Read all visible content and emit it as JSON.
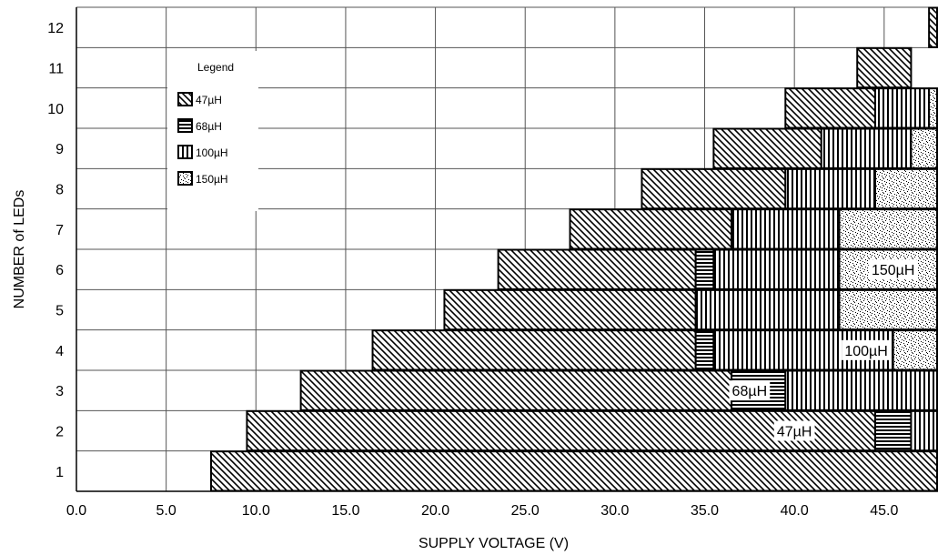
{
  "chart_data": {
    "type": "bar",
    "orientation": "horizontal-stacked-ranges",
    "title": "",
    "xlabel": "SUPPLY VOLTAGE (V)",
    "ylabel": "NUMBER of LEDs",
    "xlim": [
      0,
      48
    ],
    "xticks": [
      "0.0",
      "5.0",
      "10.0",
      "15.0",
      "20.0",
      "25.0",
      "30.0",
      "35.0",
      "40.0",
      "45.0"
    ],
    "categories": [
      "1",
      "2",
      "3",
      "4",
      "5",
      "6",
      "7",
      "8",
      "9",
      "10",
      "11",
      "12"
    ],
    "grid": true,
    "legend": {
      "title": "Legend",
      "placement": "top-left",
      "items": [
        {
          "key": "i47",
          "label": "47µH"
        },
        {
          "key": "i68",
          "label": "68µH"
        },
        {
          "key": "i100",
          "label": "100µH"
        },
        {
          "key": "i150",
          "label": "150µH"
        }
      ]
    },
    "rows": [
      {
        "leds": 1,
        "segments": [
          {
            "key": "i47",
            "from": 7.5,
            "to": 48
          }
        ]
      },
      {
        "leds": 2,
        "segments": [
          {
            "key": "i47",
            "from": 9.5,
            "to": 44.5
          },
          {
            "key": "i68",
            "from": 44.5,
            "to": 46.5
          },
          {
            "key": "i100",
            "from": 46.5,
            "to": 48
          }
        ]
      },
      {
        "leds": 3,
        "segments": [
          {
            "key": "i47",
            "from": 12.5,
            "to": 36.5
          },
          {
            "key": "i68",
            "from": 36.5,
            "to": 39.5
          },
          {
            "key": "i100",
            "from": 39.5,
            "to": 48
          }
        ]
      },
      {
        "leds": 4,
        "segments": [
          {
            "key": "i47",
            "from": 16.5,
            "to": 34.5
          },
          {
            "key": "i68",
            "from": 34.5,
            "to": 35.5
          },
          {
            "key": "i100",
            "from": 35.5,
            "to": 45.5
          },
          {
            "key": "i150",
            "from": 45.5,
            "to": 48
          }
        ]
      },
      {
        "leds": 5,
        "segments": [
          {
            "key": "i47",
            "from": 20.5,
            "to": 34.5
          },
          {
            "key": "i100",
            "from": 34.5,
            "to": 42.5
          },
          {
            "key": "i150",
            "from": 42.5,
            "to": 48
          }
        ]
      },
      {
        "leds": 6,
        "segments": [
          {
            "key": "i47",
            "from": 23.5,
            "to": 34.5
          },
          {
            "key": "i68",
            "from": 34.5,
            "to": 35.5
          },
          {
            "key": "i100",
            "from": 35.5,
            "to": 42.5
          },
          {
            "key": "i150",
            "from": 42.5,
            "to": 48
          }
        ]
      },
      {
        "leds": 7,
        "segments": [
          {
            "key": "i47",
            "from": 27.5,
            "to": 36.5
          },
          {
            "key": "i100",
            "from": 36.5,
            "to": 42.5
          },
          {
            "key": "i150",
            "from": 42.5,
            "to": 48
          }
        ]
      },
      {
        "leds": 8,
        "segments": [
          {
            "key": "i47",
            "from": 31.5,
            "to": 39.5
          },
          {
            "key": "i100",
            "from": 39.5,
            "to": 44.5
          },
          {
            "key": "i150",
            "from": 44.5,
            "to": 48
          }
        ]
      },
      {
        "leds": 9,
        "segments": [
          {
            "key": "i47",
            "from": 35.5,
            "to": 41.5
          },
          {
            "key": "i100",
            "from": 41.5,
            "to": 46.5
          },
          {
            "key": "i150",
            "from": 46.5,
            "to": 48
          }
        ]
      },
      {
        "leds": 10,
        "segments": [
          {
            "key": "i47",
            "from": 39.5,
            "to": 44.5
          },
          {
            "key": "i100",
            "from": 44.5,
            "to": 47.5
          },
          {
            "key": "i150",
            "from": 47.5,
            "to": 48
          }
        ]
      },
      {
        "leds": 11,
        "segments": [
          {
            "key": "i47",
            "from": 43.5,
            "to": 46.5
          }
        ]
      },
      {
        "leds": 12,
        "segments": [
          {
            "key": "i47",
            "from": 47.5,
            "to": 48
          }
        ]
      }
    ],
    "annotations": [
      {
        "text": "47µH",
        "row": 2,
        "x": 40
      },
      {
        "text": "68µH",
        "row": 3,
        "x": 37.5
      },
      {
        "text": "100µH",
        "row": 4,
        "x": 44
      },
      {
        "text": "150µH",
        "row": 6,
        "x": 45.5
      }
    ]
  }
}
